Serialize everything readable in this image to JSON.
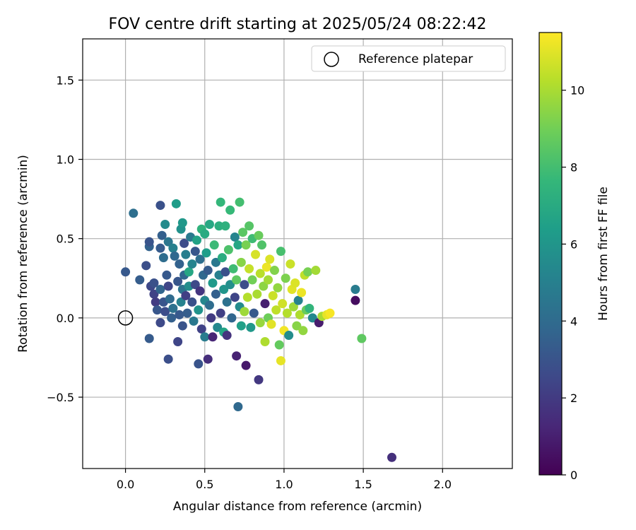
{
  "chart_data": {
    "type": "scatter",
    "title": "FOV centre drift starting at 2025/05/24 08:22:42",
    "xlabel": "Angular distance from reference (arcmin)",
    "ylabel": "Rotation from reference (arcmin)",
    "xlim": [
      -0.27,
      2.44
    ],
    "ylim": [
      -0.95,
      1.76
    ],
    "xticks": [
      0.0,
      0.5,
      1.0,
      1.5,
      2.0
    ],
    "xtick_labels": [
      "0.0",
      "0.5",
      "1.0",
      "1.5",
      "2.0"
    ],
    "yticks": [
      -0.5,
      0.0,
      0.5,
      1.0,
      1.5
    ],
    "ytick_labels": [
      "−0.5",
      "0.0",
      "0.5",
      "1.0",
      "1.5"
    ],
    "grid": true,
    "legend": {
      "placement": "top-right",
      "entries": [
        {
          "label": "Reference platepar",
          "marker": "open-circle",
          "color": "#000000"
        }
      ]
    },
    "reference_point": {
      "x": 0.0,
      "y": 0.0
    },
    "colorbar": {
      "label": "Hours from first FF file",
      "colormap": "viridis",
      "range": [
        0,
        11.5
      ],
      "ticks": [
        0,
        2,
        4,
        6,
        8,
        10
      ],
      "tick_labels": [
        "0",
        "2",
        "4",
        "6",
        "8",
        "10"
      ]
    },
    "colormap_stops": [
      "#440154",
      "#482878",
      "#3e4989",
      "#31688e",
      "#26828e",
      "#1f9e89",
      "#35b779",
      "#6ece58",
      "#b5de2b",
      "#fde725"
    ],
    "points": [
      {
        "x": 0.0,
        "y": 0.29,
        "h": 3.2
      },
      {
        "x": 0.05,
        "y": 0.66,
        "h": 4.2
      },
      {
        "x": 0.09,
        "y": 0.24,
        "h": 3.4
      },
      {
        "x": 0.13,
        "y": 0.33,
        "h": 2.8
      },
      {
        "x": 0.15,
        "y": 0.45,
        "h": 3.6
      },
      {
        "x": 0.15,
        "y": 0.48,
        "h": 3.0
      },
      {
        "x": 0.15,
        "y": -0.13,
        "h": 3.3
      },
      {
        "x": 0.16,
        "y": 0.2,
        "h": 2.5
      },
      {
        "x": 0.18,
        "y": 0.22,
        "h": 2.9
      },
      {
        "x": 0.18,
        "y": 0.15,
        "h": 2.3
      },
      {
        "x": 0.19,
        "y": 0.1,
        "h": 2.0
      },
      {
        "x": 0.2,
        "y": 0.05,
        "h": 3.1
      },
      {
        "x": 0.22,
        "y": 0.71,
        "h": 2.9
      },
      {
        "x": 0.22,
        "y": 0.44,
        "h": 3.3
      },
      {
        "x": 0.22,
        "y": 0.18,
        "h": 3.7
      },
      {
        "x": 0.22,
        "y": -0.03,
        "h": 2.6
      },
      {
        "x": 0.23,
        "y": 0.52,
        "h": 3.5
      },
      {
        "x": 0.24,
        "y": 0.38,
        "h": 4.1
      },
      {
        "x": 0.24,
        "y": 0.1,
        "h": 3.0
      },
      {
        "x": 0.25,
        "y": 0.04,
        "h": 2.7
      },
      {
        "x": 0.25,
        "y": 0.59,
        "h": 5.5
      },
      {
        "x": 0.26,
        "y": 0.27,
        "h": 3.2
      },
      {
        "x": 0.27,
        "y": 0.48,
        "h": 4.5
      },
      {
        "x": 0.27,
        "y": 0.2,
        "h": 2.4
      },
      {
        "x": 0.27,
        "y": -0.26,
        "h": 2.8
      },
      {
        "x": 0.28,
        "y": 0.12,
        "h": 4.0
      },
      {
        "x": 0.29,
        "y": 0.0,
        "h": 3.5
      },
      {
        "x": 0.3,
        "y": 0.44,
        "h": 5.0
      },
      {
        "x": 0.3,
        "y": 0.06,
        "h": 4.3
      },
      {
        "x": 0.31,
        "y": 0.39,
        "h": 3.9
      },
      {
        "x": 0.32,
        "y": 0.72,
        "h": 6.3
      },
      {
        "x": 0.33,
        "y": 0.23,
        "h": 3.1
      },
      {
        "x": 0.33,
        "y": -0.15,
        "h": 2.4
      },
      {
        "x": 0.34,
        "y": 0.34,
        "h": 3.6
      },
      {
        "x": 0.34,
        "y": 0.02,
        "h": 3.2
      },
      {
        "x": 0.35,
        "y": 0.56,
        "h": 5.8
      },
      {
        "x": 0.35,
        "y": 0.1,
        "h": 5.1
      },
      {
        "x": 0.36,
        "y": 0.6,
        "h": 6.1
      },
      {
        "x": 0.36,
        "y": 0.18,
        "h": 4.4
      },
      {
        "x": 0.36,
        "y": -0.05,
        "h": 3.0
      },
      {
        "x": 0.37,
        "y": 0.47,
        "h": 2.7
      },
      {
        "x": 0.37,
        "y": 0.27,
        "h": 3.8
      },
      {
        "x": 0.38,
        "y": 0.4,
        "h": 4.9
      },
      {
        "x": 0.38,
        "y": 0.14,
        "h": 2.2
      },
      {
        "x": 0.39,
        "y": 0.03,
        "h": 3.4
      },
      {
        "x": 0.4,
        "y": 0.29,
        "h": 6.8
      },
      {
        "x": 0.4,
        "y": 0.2,
        "h": 5.6
      },
      {
        "x": 0.41,
        "y": 0.51,
        "h": 4.7
      },
      {
        "x": 0.42,
        "y": 0.34,
        "h": 5.2
      },
      {
        "x": 0.42,
        "y": 0.1,
        "h": 2.9
      },
      {
        "x": 0.43,
        "y": -0.02,
        "h": 4.6
      },
      {
        "x": 0.44,
        "y": 0.42,
        "h": 3.1
      },
      {
        "x": 0.44,
        "y": 0.21,
        "h": 2.6
      },
      {
        "x": 0.45,
        "y": 0.49,
        "h": 6.6
      },
      {
        "x": 0.46,
        "y": 0.05,
        "h": 5.9
      },
      {
        "x": 0.46,
        "y": -0.29,
        "h": 3.0
      },
      {
        "x": 0.47,
        "y": 0.37,
        "h": 4.2
      },
      {
        "x": 0.47,
        "y": 0.17,
        "h": 1.8
      },
      {
        "x": 0.48,
        "y": 0.56,
        "h": 7.4
      },
      {
        "x": 0.48,
        "y": -0.07,
        "h": 2.3
      },
      {
        "x": 0.49,
        "y": 0.27,
        "h": 3.9
      },
      {
        "x": 0.5,
        "y": 0.53,
        "h": 7.0
      },
      {
        "x": 0.5,
        "y": 0.11,
        "h": 5.3
      },
      {
        "x": 0.5,
        "y": -0.12,
        "h": 4.8
      },
      {
        "x": 0.51,
        "y": 0.41,
        "h": 6.4
      },
      {
        "x": 0.52,
        "y": -0.26,
        "h": 1.5
      },
      {
        "x": 0.52,
        "y": 0.3,
        "h": 3.3
      },
      {
        "x": 0.53,
        "y": 0.59,
        "h": 6.9
      },
      {
        "x": 0.53,
        "y": 0.08,
        "h": 4.1
      },
      {
        "x": 0.54,
        "y": 0.0,
        "h": 2.0
      },
      {
        "x": 0.55,
        "y": 0.22,
        "h": 6.2
      },
      {
        "x": 0.55,
        "y": -0.12,
        "h": 1.2
      },
      {
        "x": 0.56,
        "y": 0.46,
        "h": 7.8
      },
      {
        "x": 0.57,
        "y": 0.35,
        "h": 4.6
      },
      {
        "x": 0.57,
        "y": 0.15,
        "h": 3.5
      },
      {
        "x": 0.58,
        "y": -0.06,
        "h": 5.4
      },
      {
        "x": 0.59,
        "y": 0.58,
        "h": 7.2
      },
      {
        "x": 0.59,
        "y": 0.27,
        "h": 5.0
      },
      {
        "x": 0.6,
        "y": 0.73,
        "h": 7.6
      },
      {
        "x": 0.6,
        "y": 0.03,
        "h": 2.2
      },
      {
        "x": 0.61,
        "y": 0.38,
        "h": 7.1
      },
      {
        "x": 0.62,
        "y": 0.18,
        "h": 6.0
      },
      {
        "x": 0.62,
        "y": -0.09,
        "h": 6.7
      },
      {
        "x": 0.63,
        "y": 0.58,
        "h": 7.3
      },
      {
        "x": 0.63,
        "y": 0.29,
        "h": 2.9
      },
      {
        "x": 0.64,
        "y": 0.1,
        "h": 4.3
      },
      {
        "x": 0.64,
        "y": -0.11,
        "h": 1.7
      },
      {
        "x": 0.65,
        "y": 0.43,
        "h": 8.2
      },
      {
        "x": 0.66,
        "y": 0.68,
        "h": 7.7
      },
      {
        "x": 0.66,
        "y": 0.21,
        "h": 5.7
      },
      {
        "x": 0.67,
        "y": 0.0,
        "h": 3.8
      },
      {
        "x": 0.68,
        "y": 0.31,
        "h": 7.9
      },
      {
        "x": 0.69,
        "y": 0.51,
        "h": 5.2
      },
      {
        "x": 0.69,
        "y": 0.13,
        "h": 2.4
      },
      {
        "x": 0.7,
        "y": -0.24,
        "h": 1.1
      },
      {
        "x": 0.7,
        "y": 0.24,
        "h": 8.6
      },
      {
        "x": 0.71,
        "y": 0.46,
        "h": 6.8
      },
      {
        "x": 0.71,
        "y": -0.56,
        "h": 3.9
      },
      {
        "x": 0.72,
        "y": 0.07,
        "h": 5.5
      },
      {
        "x": 0.72,
        "y": 0.73,
        "h": 8.0
      },
      {
        "x": 0.73,
        "y": 0.35,
        "h": 9.4
      },
      {
        "x": 0.73,
        "y": -0.05,
        "h": 6.5
      },
      {
        "x": 0.74,
        "y": 0.54,
        "h": 8.5
      },
      {
        "x": 0.75,
        "y": 0.21,
        "h": 2.7
      },
      {
        "x": 0.75,
        "y": 0.04,
        "h": 9.8
      },
      {
        "x": 0.76,
        "y": -0.3,
        "h": 0.8
      },
      {
        "x": 0.76,
        "y": 0.46,
        "h": 9.1
      },
      {
        "x": 0.77,
        "y": 0.13,
        "h": 10.2
      },
      {
        "x": 0.78,
        "y": 0.58,
        "h": 8.4
      },
      {
        "x": 0.78,
        "y": 0.31,
        "h": 10.5
      },
      {
        "x": 0.79,
        "y": -0.06,
        "h": 6.1
      },
      {
        "x": 0.8,
        "y": 0.24,
        "h": 9.0
      },
      {
        "x": 0.8,
        "y": 0.5,
        "h": 7.9
      },
      {
        "x": 0.81,
        "y": 0.03,
        "h": 3.2
      },
      {
        "x": 0.82,
        "y": 0.4,
        "h": 10.8
      },
      {
        "x": 0.83,
        "y": 0.15,
        "h": 10.0
      },
      {
        "x": 0.84,
        "y": -0.39,
        "h": 1.9
      },
      {
        "x": 0.84,
        "y": 0.52,
        "h": 8.8
      },
      {
        "x": 0.85,
        "y": 0.28,
        "h": 10.3
      },
      {
        "x": 0.85,
        "y": -0.03,
        "h": 9.7
      },
      {
        "x": 0.86,
        "y": 0.46,
        "h": 8.3
      },
      {
        "x": 0.87,
        "y": 0.2,
        "h": 9.5
      },
      {
        "x": 0.88,
        "y": -0.15,
        "h": 10.1
      },
      {
        "x": 0.88,
        "y": 0.09,
        "h": 1.0
      },
      {
        "x": 0.89,
        "y": 0.32,
        "h": 11.2
      },
      {
        "x": 0.9,
        "y": 0.0,
        "h": 8.9
      },
      {
        "x": 0.9,
        "y": 0.24,
        "h": 9.9
      },
      {
        "x": 0.91,
        "y": 0.37,
        "h": 10.9
      },
      {
        "x": 0.92,
        "y": -0.04,
        "h": 11.0
      },
      {
        "x": 0.93,
        "y": 0.14,
        "h": 10.6
      },
      {
        "x": 0.94,
        "y": 0.3,
        "h": 9.3
      },
      {
        "x": 0.95,
        "y": 0.05,
        "h": 10.4
      },
      {
        "x": 0.96,
        "y": 0.19,
        "h": 9.6
      },
      {
        "x": 0.97,
        "y": -0.17,
        "h": 8.7
      },
      {
        "x": 0.98,
        "y": -0.27,
        "h": 11.1
      },
      {
        "x": 0.98,
        "y": 0.42,
        "h": 8.1
      },
      {
        "x": 0.99,
        "y": 0.09,
        "h": 10.7
      },
      {
        "x": 1.0,
        "y": -0.08,
        "h": 11.3
      },
      {
        "x": 1.01,
        "y": 0.25,
        "h": 9.2
      },
      {
        "x": 1.02,
        "y": 0.03,
        "h": 10.2
      },
      {
        "x": 1.03,
        "y": -0.11,
        "h": 5.6
      },
      {
        "x": 1.04,
        "y": 0.34,
        "h": 10.6
      },
      {
        "x": 1.05,
        "y": 0.18,
        "h": 11.0
      },
      {
        "x": 1.06,
        "y": 0.07,
        "h": 9.8
      },
      {
        "x": 1.07,
        "y": 0.22,
        "h": 10.9
      },
      {
        "x": 1.08,
        "y": -0.05,
        "h": 9.4
      },
      {
        "x": 1.09,
        "y": 0.11,
        "h": 5.1
      },
      {
        "x": 1.1,
        "y": 0.02,
        "h": 10.1
      },
      {
        "x": 1.11,
        "y": 0.16,
        "h": 11.2
      },
      {
        "x": 1.12,
        "y": -0.08,
        "h": 9.6
      },
      {
        "x": 1.13,
        "y": 0.27,
        "h": 10.4
      },
      {
        "x": 1.14,
        "y": 0.05,
        "h": 8.8
      },
      {
        "x": 1.15,
        "y": 0.29,
        "h": 9.1
      },
      {
        "x": 1.16,
        "y": 0.06,
        "h": 7.5
      },
      {
        "x": 1.18,
        "y": 0.0,
        "h": 5.4
      },
      {
        "x": 1.2,
        "y": 0.3,
        "h": 9.9
      },
      {
        "x": 1.22,
        "y": -0.03,
        "h": 0.9
      },
      {
        "x": 1.24,
        "y": 0.01,
        "h": 10.0
      },
      {
        "x": 1.27,
        "y": 0.02,
        "h": 11.1
      },
      {
        "x": 1.29,
        "y": 0.03,
        "h": 11.4
      },
      {
        "x": 1.45,
        "y": 0.18,
        "h": 4.8
      },
      {
        "x": 1.45,
        "y": 0.11,
        "h": 0.4
      },
      {
        "x": 1.49,
        "y": -0.13,
        "h": 8.6
      },
      {
        "x": 1.68,
        "y": -0.88,
        "h": 1.6
      }
    ]
  }
}
